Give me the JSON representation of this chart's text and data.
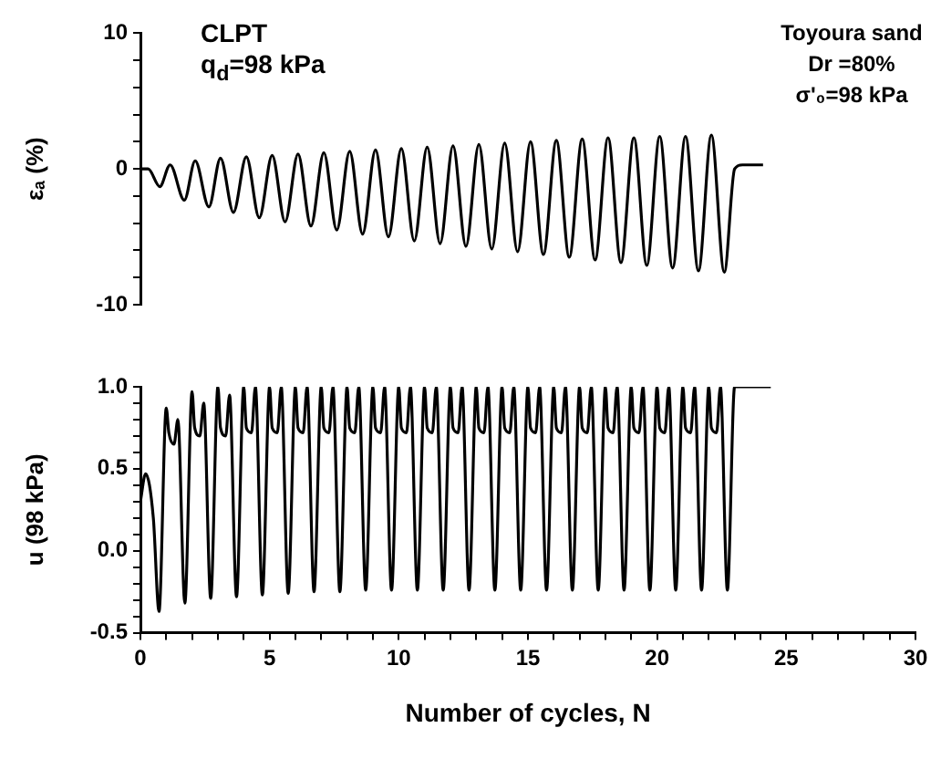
{
  "chart_data": [
    {
      "type": "line",
      "ylabel": "εₐ (%)",
      "annotations": [
        "CLPT",
        "q$_{d}$=98 kPa",
        "Toyoura sand",
        "Dr =80%",
        "σ'₀=98 kPa"
      ],
      "xlim": [
        0,
        30
      ],
      "ylim": [
        -10,
        10
      ],
      "yticks": [
        -10,
        {
          "value": -8,
          "label": null
        },
        {
          "value": -6,
          "label": null
        },
        {
          "value": -4,
          "label": null
        },
        {
          "value": -2,
          "label": null
        },
        0,
        {
          "value": 2,
          "label": null
        },
        {
          "value": 4,
          "label": null
        },
        {
          "value": 6,
          "label": null
        },
        {
          "value": 8,
          "label": null
        },
        10
      ],
      "tick_labels": "y",
      "grid": false,
      "legend": false,
      "marker": "none",
      "line_style": "solid",
      "series": [
        {
          "color": "#000000",
          "x": [
            0,
            0.3,
            0.75,
            1.15,
            1.7,
            2.12,
            2.65,
            3.1,
            3.6,
            4.1,
            4.6,
            5.1,
            5.6,
            6.1,
            6.6,
            7.1,
            7.6,
            8.1,
            8.6,
            9.1,
            9.6,
            10.1,
            10.6,
            11.1,
            11.6,
            12.1,
            12.6,
            13.1,
            13.6,
            14.1,
            14.6,
            15.1,
            15.6,
            16.1,
            16.6,
            17.1,
            17.6,
            18.1,
            18.6,
            19.1,
            19.6,
            20.1,
            20.6,
            21.1,
            21.6,
            22.1,
            22.6,
            23.0,
            23.3,
            24.1
          ],
          "values": [
            0,
            0,
            -1.3,
            0.3,
            -2.3,
            0.6,
            -2.8,
            0.8,
            -3.2,
            0.9,
            -3.6,
            1.0,
            -3.9,
            1.1,
            -4.2,
            1.2,
            -4.5,
            1.3,
            -4.8,
            1.4,
            -5.0,
            1.5,
            -5.3,
            1.6,
            -5.5,
            1.7,
            -5.7,
            1.8,
            -5.9,
            1.9,
            -6.1,
            2.0,
            -6.3,
            2.1,
            -6.5,
            2.2,
            -6.7,
            2.3,
            -6.9,
            2.3,
            -7.1,
            2.4,
            -7.3,
            2.4,
            -7.5,
            2.5,
            -7.6,
            0,
            0.3,
            0.3
          ]
        }
      ]
    },
    {
      "type": "line",
      "xlabel": "Number of cycles, N",
      "ylabel": "u (98 kPa)",
      "xlim": [
        0,
        30
      ],
      "xticks": [
        0,
        {
          "value": 1,
          "label": null
        },
        {
          "value": 2,
          "label": null
        },
        {
          "value": 3,
          "label": null
        },
        {
          "value": 4,
          "label": null
        },
        5,
        {
          "value": 6,
          "label": null
        },
        {
          "value": 7,
          "label": null
        },
        {
          "value": 8,
          "label": null
        },
        {
          "value": 9,
          "label": null
        },
        10,
        {
          "value": 11,
          "label": null
        },
        {
          "value": 12,
          "label": null
        },
        {
          "value": 13,
          "label": null
        },
        {
          "value": 14,
          "label": null
        },
        15,
        {
          "value": 16,
          "label": null
        },
        {
          "value": 17,
          "label": null
        },
        {
          "value": 18,
          "label": null
        },
        {
          "value": 19,
          "label": null
        },
        20,
        {
          "value": 21,
          "label": null
        },
        {
          "value": 22,
          "label": null
        },
        {
          "value": 23,
          "label": null
        },
        {
          "value": 24,
          "label": null
        },
        25,
        {
          "value": 26,
          "label": null
        },
        {
          "value": 27,
          "label": null
        },
        {
          "value": 28,
          "label": null
        },
        {
          "value": 29,
          "label": null
        },
        30
      ],
      "ylim": [
        -0.5,
        1.0
      ],
      "yticks": [
        -0.5,
        {
          "value": -0.4,
          "label": null
        },
        {
          "value": -0.3,
          "label": null
        },
        {
          "value": -0.2,
          "label": null
        },
        {
          "value": -0.1,
          "label": null
        },
        {
          "value": 0,
          "label": "0.0"
        },
        {
          "value": 0.1,
          "label": null
        },
        {
          "value": 0.2,
          "label": null
        },
        {
          "value": 0.3,
          "label": null
        },
        {
          "value": 0.4,
          "label": null
        },
        0.5,
        {
          "value": 0.6,
          "label": null
        },
        {
          "value": 0.7,
          "label": null
        },
        {
          "value": 0.8,
          "label": null
        },
        {
          "value": 0.9,
          "label": null
        },
        {
          "value": 1,
          "label": "1.0"
        }
      ],
      "grid": false,
      "legend": false,
      "marker": "none",
      "line_style": "solid",
      "series": [
        {
          "color": "#000000",
          "x": [
            0,
            0.2,
            0.5,
            0.72,
            1,
            1.1,
            1.3,
            1.45,
            1.72,
            2,
            2.1,
            2.3,
            2.45,
            2.72,
            3,
            3.1,
            3.3,
            3.45,
            3.72,
            4,
            4.1,
            4.3,
            4.45,
            4.72,
            5,
            5.1,
            5.3,
            5.45,
            5.72,
            6,
            6.1,
            6.3,
            6.45,
            6.72,
            7,
            7.1,
            7.3,
            7.45,
            7.72,
            8,
            8.1,
            8.3,
            8.45,
            8.72,
            9,
            9.1,
            9.3,
            9.45,
            9.72,
            10,
            10.1,
            10.3,
            10.45,
            10.72,
            11,
            11.1,
            11.3,
            11.45,
            11.72,
            12,
            12.1,
            12.3,
            12.45,
            12.72,
            13,
            13.1,
            13.3,
            13.45,
            13.72,
            14,
            14.1,
            14.3,
            14.45,
            14.72,
            15,
            15.1,
            15.3,
            15.45,
            15.72,
            16,
            16.1,
            16.3,
            16.45,
            16.72,
            17,
            17.1,
            17.3,
            17.45,
            17.72,
            18,
            18.1,
            18.3,
            18.45,
            18.72,
            19,
            19.1,
            19.3,
            19.45,
            19.72,
            20,
            20.1,
            20.3,
            20.45,
            20.72,
            21,
            21.1,
            21.3,
            21.45,
            21.72,
            22,
            22.1,
            22.3,
            22.45,
            22.72,
            23,
            24.4
          ],
          "values": [
            0.3,
            0.47,
            0.2,
            -0.37,
            0.87,
            0.72,
            0.65,
            0.8,
            -0.32,
            0.97,
            0.75,
            0.7,
            0.9,
            -0.29,
            1.0,
            0.75,
            0.7,
            0.95,
            -0.28,
            1.0,
            0.75,
            0.72,
            1.0,
            -0.27,
            1.0,
            0.75,
            0.72,
            1.0,
            -0.26,
            1.0,
            0.75,
            0.72,
            1.0,
            -0.25,
            1.0,
            0.75,
            0.72,
            1.0,
            -0.25,
            1.0,
            0.75,
            0.72,
            1.0,
            -0.24,
            1.0,
            0.75,
            0.72,
            1.0,
            -0.24,
            1.0,
            0.75,
            0.72,
            1.0,
            -0.24,
            1.0,
            0.75,
            0.72,
            1.0,
            -0.24,
            1.0,
            0.75,
            0.72,
            1.0,
            -0.24,
            1.0,
            0.75,
            0.72,
            1.0,
            -0.24,
            1.0,
            0.75,
            0.72,
            1.0,
            -0.24,
            1.0,
            0.75,
            0.72,
            1.0,
            -0.24,
            1.0,
            0.75,
            0.72,
            1.0,
            -0.24,
            1.0,
            0.75,
            0.72,
            1.0,
            -0.24,
            1.0,
            0.75,
            0.72,
            1.0,
            -0.24,
            1.0,
            0.75,
            0.72,
            1.0,
            -0.24,
            1.0,
            0.75,
            0.72,
            1.0,
            -0.24,
            1.0,
            0.75,
            0.72,
            1.0,
            -0.24,
            1.0,
            0.75,
            0.72,
            1.0,
            -0.24,
            1.0,
            1.0
          ]
        }
      ]
    }
  ]
}
